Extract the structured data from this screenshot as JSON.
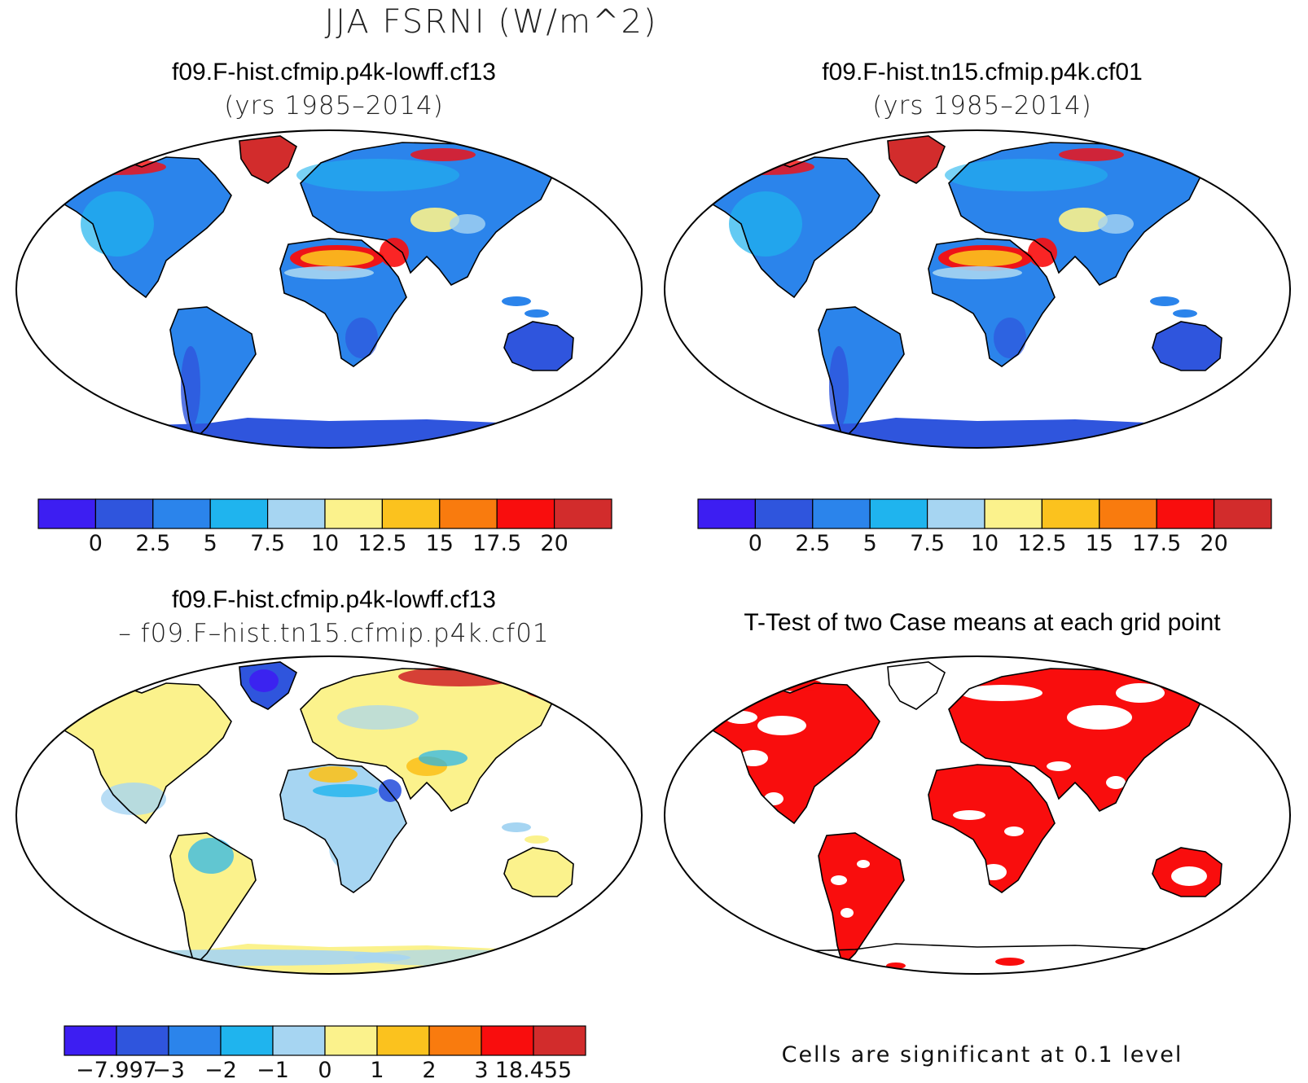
{
  "title": "JJA FSRNI (W/m^2)",
  "panels": [
    {
      "id": "tl",
      "title": "f09.F-hist.cfmip.p4k-lowff.cf13",
      "subtitle": "(yrs 1985–2014)",
      "style": "case"
    },
    {
      "id": "tr",
      "title": "f09.F-hist.tn15.cfmip.p4k.cf01",
      "subtitle": "(yrs 1985–2014)",
      "style": "case"
    },
    {
      "id": "bl",
      "title": "f09.F-hist.cfmip.p4k-lowff.cf13",
      "subtitle": "– f09.F–hist.tn15.cfmip.p4k.cf01",
      "style": "diff"
    },
    {
      "id": "br",
      "title": "T-Test of two Case means at each grid point",
      "subtitle": "",
      "style": "ttest"
    }
  ],
  "colorbars": {
    "case": {
      "colors": [
        "#3d1ef2",
        "#2f55dd",
        "#2b84eb",
        "#1fb4ee",
        "#a6d5f2",
        "#fbf28c",
        "#fbc21e",
        "#f97b0e",
        "#f90d0d",
        "#d22c2c"
      ],
      "labels": [
        "0",
        "2.5",
        "5",
        "7.5",
        "10",
        "12.5",
        "15",
        "17.5",
        "20"
      ]
    },
    "diff": {
      "colors": [
        "#3d1ef2",
        "#2f55dd",
        "#2b84eb",
        "#1fb4ee",
        "#a6d5f2",
        "#fbf28c",
        "#fbc21e",
        "#f97b0e",
        "#f90d0d",
        "#d22c2c"
      ],
      "labels": [
        "−7.997",
        "−3",
        "−2",
        "−1",
        "0",
        "1",
        "2",
        "3",
        "18.455"
      ]
    }
  },
  "ttest_note": "Cells are significant at 0.1 level"
}
